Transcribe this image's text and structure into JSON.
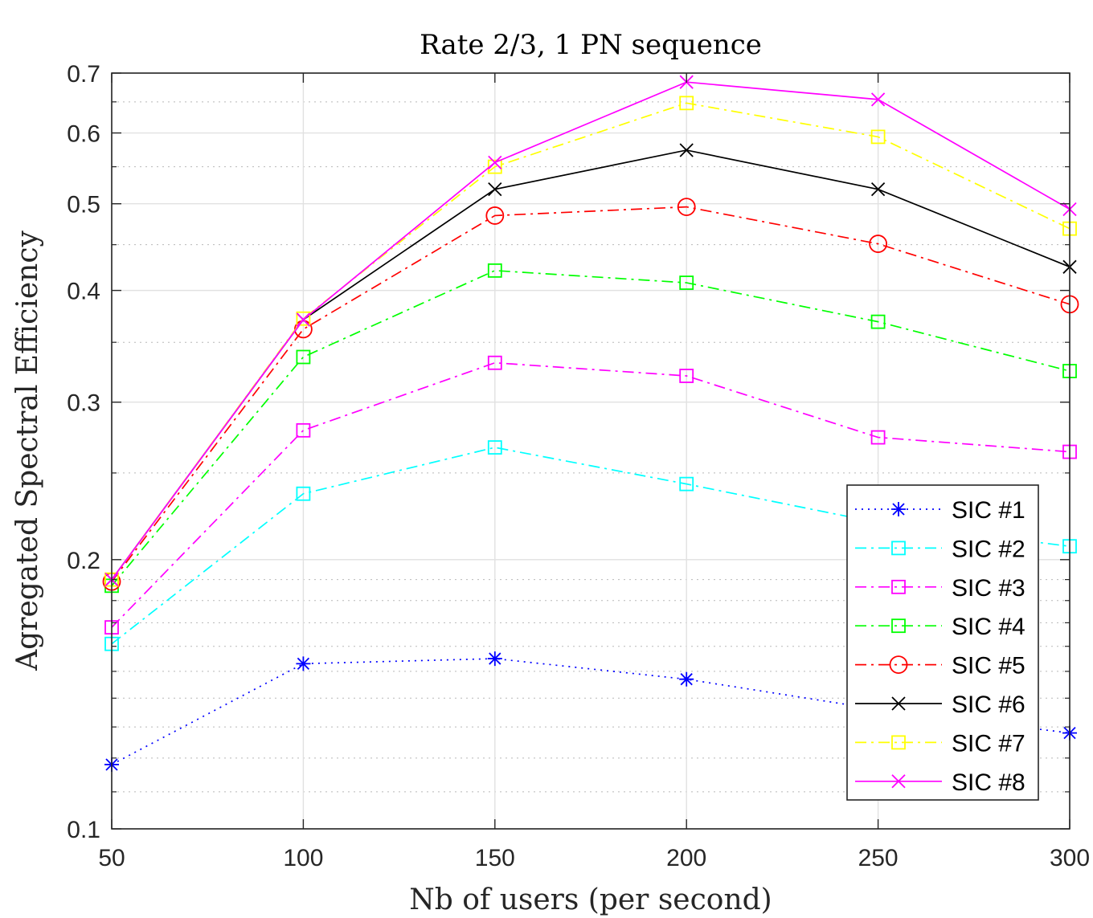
{
  "chart_data": {
    "type": "line",
    "title": "Rate 2/3, 1 PN sequence",
    "xlabel": "Nb of users (per second)",
    "ylabel": "Agregated Spectral Efficiency",
    "x": [
      50,
      100,
      150,
      200,
      250,
      300
    ],
    "xlim": [
      50,
      300
    ],
    "ylim": [
      0.1,
      0.7
    ],
    "yscale": "log",
    "xticks": [
      50,
      100,
      150,
      200,
      250,
      300
    ],
    "yticks": [
      0.1,
      0.2,
      0.3,
      0.4,
      0.5,
      0.6,
      0.7
    ],
    "xtick_labels": [
      "50",
      "100",
      "150",
      "200",
      "250",
      "300"
    ],
    "ytick_labels": [
      "0.1",
      "0.2",
      "0.3",
      "0.4",
      "0.5",
      "0.6",
      "0.7"
    ],
    "grid": true,
    "legend_position": "bottom-right",
    "series": [
      {
        "name": "SIC #1",
        "color": "#0000ff",
        "marker": "asterisk",
        "line": "dotted",
        "values": [
          0.118,
          0.153,
          0.155,
          0.147,
          0.136,
          0.128
        ]
      },
      {
        "name": "SIC #2",
        "color": "#00ffff",
        "marker": "square",
        "line": "dashdot",
        "values": [
          0.161,
          0.237,
          0.267,
          0.243,
          0.22,
          0.207
        ]
      },
      {
        "name": "SIC #3",
        "color": "#ff00ff",
        "marker": "square",
        "line": "dashdot",
        "values": [
          0.168,
          0.279,
          0.332,
          0.321,
          0.274,
          0.264
        ]
      },
      {
        "name": "SIC #4",
        "color": "#00ff00",
        "marker": "square",
        "line": "dashdot",
        "values": [
          0.187,
          0.337,
          0.421,
          0.408,
          0.369,
          0.325
        ]
      },
      {
        "name": "SIC #5",
        "color": "#ff0000",
        "marker": "circle",
        "line": "dashdot",
        "values": [
          0.189,
          0.362,
          0.485,
          0.496,
          0.451,
          0.386
        ]
      },
      {
        "name": "SIC #6",
        "color": "#000000",
        "marker": "x",
        "line": "solid",
        "values": [
          0.19,
          0.371,
          0.519,
          0.574,
          0.519,
          0.425
        ]
      },
      {
        "name": "SIC #7",
        "color": "#ffff00",
        "marker": "square",
        "line": "dashdot",
        "values": [
          0.19,
          0.372,
          0.55,
          0.648,
          0.594,
          0.469
        ]
      },
      {
        "name": "SIC #8",
        "color": "#ff00ff",
        "marker": "x",
        "line": "solid",
        "values": [
          0.19,
          0.371,
          0.556,
          0.684,
          0.654,
          0.493
        ]
      }
    ]
  }
}
